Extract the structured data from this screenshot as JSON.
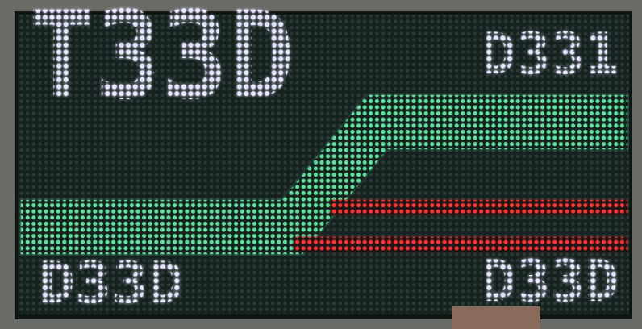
{
  "panel": {
    "labels": [
      "T33D",
      "D331",
      "D33D",
      "D33D"
    ]
  }
}
